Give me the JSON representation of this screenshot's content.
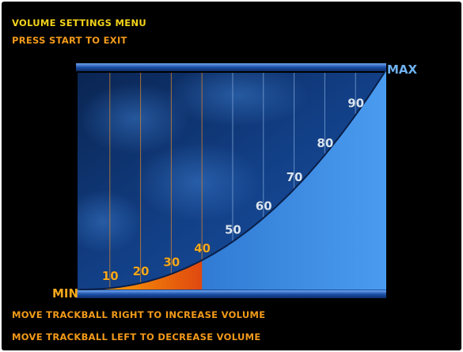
{
  "header": {
    "title": "VOLUME SETTINGS MENU",
    "subtitle": "PRESS START TO EXIT"
  },
  "gauge": {
    "min_label": "MIN",
    "max_label": "MAX",
    "tick_labels": [
      "10",
      "20",
      "30",
      "40",
      "50",
      "60",
      "70",
      "80",
      "90"
    ],
    "current_level_percent": 40,
    "colors": {
      "active_tick": "#f6a81c",
      "inactive_tick": "#d9e6f4",
      "fill_start": "#ffb300",
      "fill_end": "#e04810",
      "rail": "#1c4fa8",
      "panel_dark": "#0b2f6e",
      "panel_light": "#2d7ad6"
    }
  },
  "instructions": {
    "increase": "MOVE TRACKBALL RIGHT TO INCREASE VOLUME",
    "decrease": "MOVE TRACKBALL LEFT TO DECREASE VOLUME"
  }
}
